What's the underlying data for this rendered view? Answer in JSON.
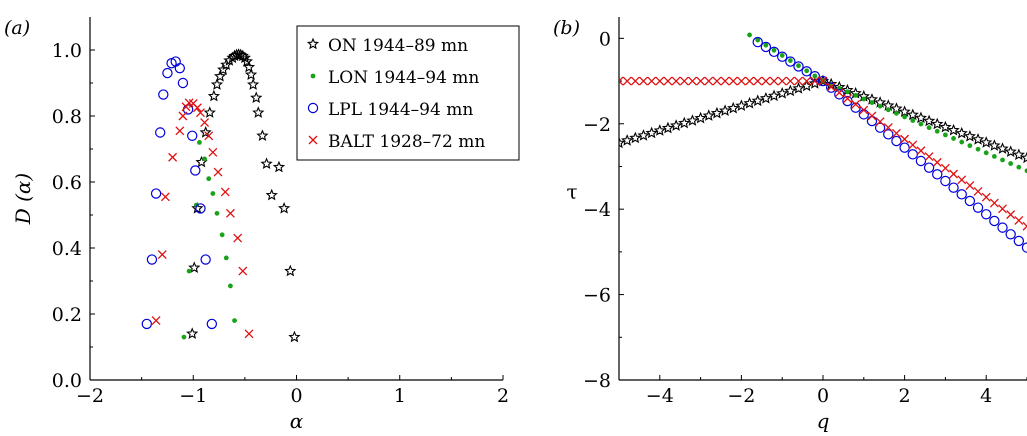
{
  "figure": {
    "panel_labels": [
      "(a)",
      "(b)"
    ],
    "colors": {
      "ON": "#000000",
      "LON": "#1aa31a",
      "LPL": "#0000dd",
      "BALT": "#e01010"
    }
  },
  "chart_data": [
    {
      "panel": "(a)",
      "type": "scatter",
      "xlabel": "α",
      "ylabel": "D (α)",
      "xlim": [
        -2,
        2
      ],
      "ylim": [
        0,
        1.1
      ],
      "xticks": [
        -2,
        -1,
        0,
        1,
        2
      ],
      "yticks": [
        0.0,
        0.2,
        0.4,
        0.6,
        0.8,
        1.0
      ],
      "xtick_labels": [
        "−2",
        "−1",
        "0",
        "1",
        "2"
      ],
      "ytick_labels": [
        "0.0",
        "0.2",
        "0.4",
        "0.6",
        "0.8",
        "1.0"
      ],
      "legend": "top-right",
      "grid": false,
      "series": [
        {
          "name": "ON 1944–89 mn",
          "marker": "star",
          "color": "#000000",
          "points": [
            [
              -1.01,
              0.14
            ],
            [
              -0.99,
              0.34
            ],
            [
              -0.96,
              0.52
            ],
            [
              -0.92,
              0.66
            ],
            [
              -0.88,
              0.75
            ],
            [
              -0.84,
              0.81
            ],
            [
              -0.8,
              0.86
            ],
            [
              -0.77,
              0.895
            ],
            [
              -0.74,
              0.92
            ],
            [
              -0.71,
              0.94
            ],
            [
              -0.68,
              0.955
            ],
            [
              -0.65,
              0.968
            ],
            [
              -0.62,
              0.976
            ],
            [
              -0.6,
              0.982
            ],
            [
              -0.58,
              0.985
            ],
            [
              -0.56,
              0.986
            ],
            [
              -0.54,
              0.985
            ],
            [
              -0.52,
              0.982
            ],
            [
              -0.5,
              0.976
            ],
            [
              -0.48,
              0.965
            ],
            [
              -0.46,
              0.948
            ],
            [
              -0.44,
              0.925
            ],
            [
              -0.42,
              0.895
            ],
            [
              -0.39,
              0.855
            ],
            [
              -0.37,
              0.81
            ],
            [
              -0.33,
              0.74
            ],
            [
              -0.29,
              0.655
            ],
            [
              -0.24,
              0.56
            ],
            [
              -0.17,
              0.645
            ],
            [
              -0.12,
              0.52
            ],
            [
              -0.06,
              0.33
            ],
            [
              -0.02,
              0.13
            ]
          ]
        },
        {
          "name": "LON 1944–94 mn",
          "marker": "dot",
          "color": "#1aa31a",
          "points": [
            [
              -1.09,
              0.13
            ],
            [
              -1.04,
              0.33
            ],
            [
              -0.97,
              0.53
            ],
            [
              -0.94,
              0.72
            ],
            [
              -0.89,
              0.67
            ],
            [
              -0.85,
              0.61
            ],
            [
              -0.81,
              0.565
            ],
            [
              -0.77,
              0.505
            ],
            [
              -0.72,
              0.44
            ],
            [
              -0.68,
              0.37
            ],
            [
              -0.64,
              0.285
            ],
            [
              -0.6,
              0.18
            ]
          ]
        },
        {
          "name": "LPL 1944–94 mn",
          "marker": "circle",
          "color": "#0000dd",
          "points": [
            [
              -1.45,
              0.17
            ],
            [
              -1.4,
              0.365
            ],
            [
              -1.36,
              0.565
            ],
            [
              -1.32,
              0.75
            ],
            [
              -1.29,
              0.865
            ],
            [
              -1.25,
              0.93
            ],
            [
              -1.21,
              0.96
            ],
            [
              -1.17,
              0.965
            ],
            [
              -1.13,
              0.945
            ],
            [
              -1.1,
              0.9
            ],
            [
              -1.05,
              0.82
            ],
            [
              -1.01,
              0.74
            ],
            [
              -0.98,
              0.635
            ],
            [
              -0.93,
              0.52
            ],
            [
              -0.88,
              0.365
            ],
            [
              -0.82,
              0.17
            ]
          ]
        },
        {
          "name": "BALT 1928–72 mn",
          "marker": "cross",
          "color": "#e01010",
          "points": [
            [
              -1.36,
              0.18
            ],
            [
              -1.3,
              0.38
            ],
            [
              -1.27,
              0.555
            ],
            [
              -1.2,
              0.675
            ],
            [
              -1.13,
              0.755
            ],
            [
              -1.1,
              0.8
            ],
            [
              -1.07,
              0.828
            ],
            [
              -1.04,
              0.84
            ],
            [
              -1.0,
              0.838
            ],
            [
              -0.96,
              0.825
            ],
            [
              -0.93,
              0.81
            ],
            [
              -0.89,
              0.78
            ],
            [
              -0.85,
              0.74
            ],
            [
              -0.81,
              0.69
            ],
            [
              -0.76,
              0.63
            ],
            [
              -0.69,
              0.57
            ],
            [
              -0.64,
              0.505
            ],
            [
              -0.57,
              0.43
            ],
            [
              -0.52,
              0.33
            ],
            [
              -0.46,
              0.14
            ]
          ]
        }
      ]
    },
    {
      "panel": "(b)",
      "type": "scatter",
      "xlabel": "q",
      "ylabel": "τ",
      "xlim": [
        -5,
        5
      ],
      "ylim": [
        -8,
        0.5
      ],
      "xticks": [
        -4,
        -2,
        0,
        2,
        4
      ],
      "yticks": [
        0,
        -2,
        -4,
        -6,
        -8
      ],
      "xtick_labels": [
        "−4",
        "−2",
        "0",
        "2",
        "4"
      ],
      "ytick_labels": [
        "0",
        "−2",
        "−4",
        "−6",
        "−8"
      ],
      "grid": false,
      "series": [
        {
          "name": "ON 1944–89 mn",
          "marker": "star",
          "color": "#000000",
          "q_from": -5,
          "q_to": 5,
          "q_step": 0.2,
          "left_slope": 0.29,
          "right_slope": -0.36,
          "tau0": -1.0
        },
        {
          "name": "LON 1944–94 mn",
          "marker": "dot",
          "color": "#1aa31a",
          "q_from": -1.8,
          "q_to": 5,
          "q_step": 0.2,
          "left_slope": -0.6,
          "right_slope": -0.42,
          "tau0": -1.0
        },
        {
          "name": "LPL 1944–94 mn",
          "marker": "circle",
          "color": "#0000dd",
          "q_from": -1.6,
          "q_to": 5,
          "q_step": 0.2,
          "left_slope": -0.57,
          "right_slope": -0.78,
          "tau0": -1.0
        },
        {
          "name": "BALT 1928–72 mn",
          "marker": "cross",
          "color": "#e01010",
          "q_from": -5,
          "q_to": 5,
          "q_step": 0.2,
          "left_slope": 0.0,
          "right_slope": -0.68,
          "tau0": -1.0
        }
      ]
    }
  ]
}
